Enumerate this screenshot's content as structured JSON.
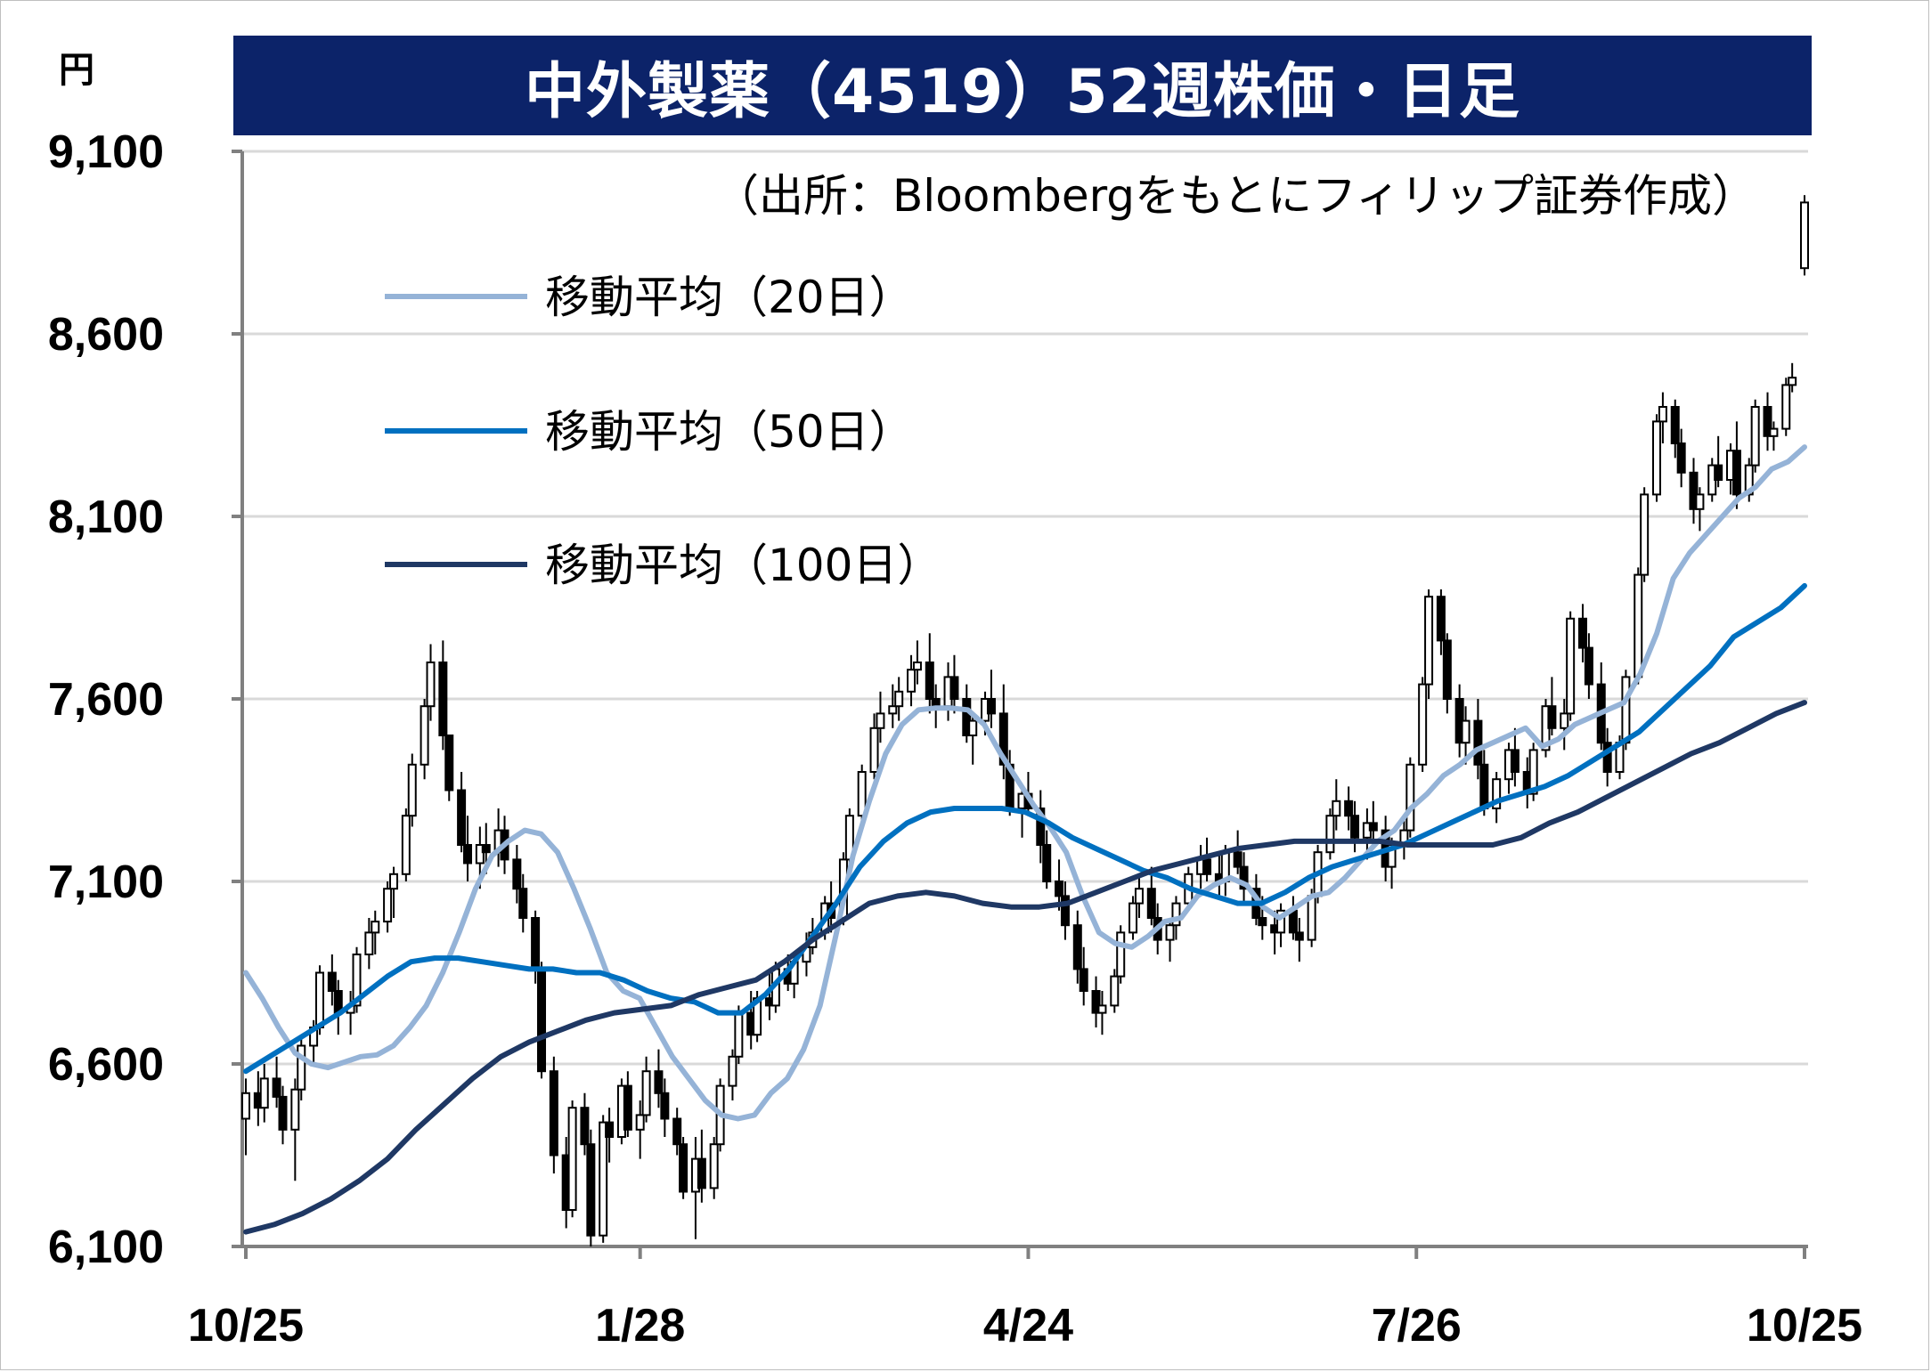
{
  "title": "中外製薬（4519）52週株価・日足",
  "unit": "円",
  "source": "（出所：Bloombergをもとにフィリップ証券作成）",
  "colors": {
    "title_bg": "#0c2369",
    "ma20": "#95b3d7",
    "ma50": "#0070c0",
    "ma100": "#1f3864",
    "candle": "#000000",
    "grid": "#d9d9d9"
  },
  "chart_data": {
    "type": "candlestick",
    "title": "中外製薬（4519）52週株価・日足",
    "ylabel": "円",
    "ylim": [
      6100,
      9100
    ],
    "y_ticks": [
      "9,100",
      "8,600",
      "8,100",
      "7,600",
      "7,100",
      "6,600",
      "6,100"
    ],
    "y_tick_values": [
      9100,
      8600,
      8100,
      7600,
      7100,
      6600,
      6100
    ],
    "x_ticks": [
      "10/25",
      "1/28",
      "4/24",
      "7/26",
      "10/25"
    ],
    "x_tick_index": [
      0,
      64,
      127,
      190,
      253
    ],
    "grid": true,
    "legend_position": "upper-left",
    "series": [
      {
        "name": "移動平均（20日）",
        "values": [
          6850,
          6780,
          6700,
          6630,
          6600,
          6590,
          6605,
          6620,
          6625,
          6650,
          6700,
          6760,
          6850,
          6960,
          7080,
          7170,
          7210,
          7240,
          7230,
          7180,
          7080,
          6970,
          6850,
          6800,
          6780,
          6700,
          6620,
          6560,
          6500,
          6460,
          6450,
          6460,
          6520,
          6560,
          6640,
          6760,
          6960,
          7170,
          7320,
          7450,
          7530,
          7570,
          7575,
          7575,
          7570,
          7530,
          7450,
          7380,
          7310,
          7250,
          7180,
          7060,
          6960,
          6930,
          6920,
          6950,
          6990,
          7000,
          7060,
          7090,
          7110,
          7090,
          7030,
          7000,
          7030,
          7060,
          7070,
          7110,
          7160,
          7210,
          7240,
          7300,
          7340,
          7390,
          7420,
          7460,
          7480,
          7500,
          7520,
          7470,
          7490,
          7530,
          7550,
          7570,
          7590,
          7670,
          7780,
          7930,
          8000,
          8050,
          8100,
          8150,
          8180,
          8230,
          8250,
          8290
        ]
      },
      {
        "name": "移動平均（50日）",
        "values": [
          6580,
          6620,
          6660,
          6700,
          6740,
          6790,
          6840,
          6880,
          6890,
          6890,
          6880,
          6870,
          6860,
          6860,
          6850,
          6850,
          6830,
          6800,
          6780,
          6770,
          6740,
          6740,
          6790,
          6860,
          6950,
          7040,
          7140,
          7210,
          7260,
          7290,
          7300,
          7300,
          7300,
          7290,
          7260,
          7220,
          7190,
          7160,
          7130,
          7110,
          7080,
          7060,
          7040,
          7040,
          7070,
          7110,
          7140,
          7160,
          7180,
          7200,
          7230,
          7260,
          7290,
          7320,
          7340,
          7360,
          7390,
          7430,
          7470,
          7510,
          7570,
          7630,
          7690,
          7770,
          7810,
          7850,
          7910
        ]
      },
      {
        "name": "移動平均（100日）",
        "values": [
          6140,
          6160,
          6190,
          6230,
          6280,
          6340,
          6420,
          6490,
          6560,
          6620,
          6660,
          6690,
          6720,
          6740,
          6750,
          6760,
          6790,
          6810,
          6830,
          6880,
          6940,
          6990,
          7040,
          7060,
          7070,
          7060,
          7040,
          7030,
          7030,
          7040,
          7070,
          7100,
          7130,
          7150,
          7170,
          7190,
          7200,
          7210,
          7210,
          7210,
          7210,
          7200,
          7200,
          7200,
          7200,
          7220,
          7260,
          7290,
          7330,
          7370,
          7410,
          7450,
          7480,
          7520,
          7560,
          7590
        ]
      }
    ],
    "candles": [
      [
        6450,
        6560,
        6350,
        6520
      ],
      [
        6520,
        6580,
        6430,
        6480
      ],
      [
        6480,
        6600,
        6440,
        6560
      ],
      [
        6560,
        6620,
        6480,
        6510
      ],
      [
        6510,
        6540,
        6380,
        6420
      ],
      [
        6420,
        6560,
        6280,
        6530
      ],
      [
        6530,
        6680,
        6500,
        6650
      ],
      [
        6650,
        6720,
        6600,
        6700
      ],
      [
        6700,
        6870,
        6680,
        6850
      ],
      [
        6850,
        6900,
        6760,
        6800
      ],
      [
        6800,
        6830,
        6680,
        6740
      ],
      [
        6740,
        6800,
        6680,
        6760
      ],
      [
        6760,
        6920,
        6740,
        6900
      ],
      [
        6900,
        7000,
        6860,
        6960
      ],
      [
        6960,
        7020,
        6900,
        6990
      ],
      [
        6990,
        7100,
        6960,
        7080
      ],
      [
        7080,
        7140,
        7000,
        7120
      ],
      [
        7120,
        7300,
        7100,
        7280
      ],
      [
        7280,
        7450,
        7250,
        7420
      ],
      [
        7420,
        7600,
        7380,
        7580
      ],
      [
        7580,
        7750,
        7540,
        7700
      ],
      [
        7700,
        7760,
        7460,
        7500
      ],
      [
        7500,
        7500,
        7320,
        7350
      ],
      [
        7350,
        7400,
        7180,
        7200
      ],
      [
        7200,
        7280,
        7100,
        7150
      ],
      [
        7150,
        7250,
        7080,
        7200
      ],
      [
        7200,
        7260,
        7120,
        7180
      ],
      [
        7180,
        7300,
        7140,
        7240
      ],
      [
        7240,
        7280,
        7120,
        7160
      ],
      [
        7160,
        7200,
        7040,
        7080
      ],
      [
        7080,
        7120,
        6960,
        7000
      ],
      [
        7000,
        7020,
        6820,
        6860
      ],
      [
        6860,
        6880,
        6560,
        6580
      ],
      [
        6580,
        6620,
        6300,
        6350
      ],
      [
        6350,
        6400,
        6150,
        6200
      ],
      [
        6200,
        6500,
        6180,
        6480
      ],
      [
        6480,
        6520,
        6350,
        6380
      ],
      [
        6380,
        6420,
        6100,
        6130
      ],
      [
        6130,
        6460,
        6110,
        6440
      ],
      [
        6440,
        6480,
        6330,
        6400
      ],
      [
        6400,
        6560,
        6380,
        6540
      ],
      [
        6540,
        6580,
        6400,
        6420
      ],
      [
        6420,
        6500,
        6340,
        6460
      ],
      [
        6460,
        6620,
        6440,
        6580
      ],
      [
        6580,
        6640,
        6480,
        6520
      ],
      [
        6520,
        6560,
        6400,
        6450
      ],
      [
        6450,
        6480,
        6350,
        6380
      ],
      [
        6380,
        6400,
        6230,
        6250
      ],
      [
        6250,
        6400,
        6120,
        6340
      ],
      [
        6340,
        6420,
        6220,
        6260
      ],
      [
        6260,
        6400,
        6230,
        6380
      ],
      [
        6380,
        6560,
        6360,
        6540
      ],
      [
        6540,
        6640,
        6500,
        6620
      ],
      [
        6620,
        6760,
        6600,
        6740
      ],
      [
        6740,
        6800,
        6640,
        6680
      ],
      [
        6680,
        6800,
        6660,
        6780
      ],
      [
        6780,
        6860,
        6720,
        6760
      ],
      [
        6760,
        6880,
        6740,
        6860
      ],
      [
        6860,
        6900,
        6800,
        6820
      ],
      [
        6820,
        6900,
        6780,
        6880
      ],
      [
        6880,
        6960,
        6840,
        6920
      ],
      [
        6920,
        7000,
        6900,
        6960
      ],
      [
        6960,
        7060,
        6940,
        7040
      ],
      [
        7040,
        7100,
        6960,
        7000
      ],
      [
        7000,
        7180,
        6980,
        7160
      ],
      [
        7160,
        7300,
        7140,
        7280
      ],
      [
        7280,
        7420,
        7260,
        7400
      ],
      [
        7400,
        7560,
        7380,
        7520
      ],
      [
        7520,
        7620,
        7480,
        7560
      ],
      [
        7560,
        7640,
        7520,
        7580
      ],
      [
        7580,
        7660,
        7540,
        7620
      ],
      [
        7620,
        7720,
        7580,
        7680
      ],
      [
        7680,
        7760,
        7640,
        7700
      ],
      [
        7700,
        7780,
        7560,
        7600
      ],
      [
        7600,
        7640,
        7520,
        7580
      ],
      [
        7580,
        7700,
        7540,
        7660
      ],
      [
        7660,
        7720,
        7560,
        7600
      ],
      [
        7600,
        7640,
        7480,
        7500
      ],
      [
        7500,
        7560,
        7420,
        7540
      ],
      [
        7540,
        7620,
        7500,
        7600
      ],
      [
        7600,
        7680,
        7520,
        7560
      ],
      [
        7560,
        7640,
        7380,
        7420
      ],
      [
        7420,
        7460,
        7280,
        7300
      ],
      [
        7300,
        7360,
        7220,
        7340
      ],
      [
        7340,
        7400,
        7280,
        7300
      ],
      [
        7300,
        7350,
        7150,
        7200
      ],
      [
        7200,
        7240,
        7080,
        7100
      ],
      [
        7100,
        7160,
        7020,
        7060
      ],
      [
        7060,
        7100,
        6940,
        6980
      ],
      [
        6980,
        7020,
        6820,
        6860
      ],
      [
        6860,
        6920,
        6760,
        6800
      ],
      [
        6800,
        6840,
        6700,
        6740
      ],
      [
        6740,
        6800,
        6680,
        6760
      ],
      [
        6760,
        6860,
        6740,
        6840
      ],
      [
        6840,
        6980,
        6820,
        6960
      ],
      [
        6960,
        7060,
        6940,
        7040
      ],
      [
        7040,
        7120,
        7000,
        7080
      ],
      [
        7080,
        7140,
        6980,
        7000
      ],
      [
        7000,
        7040,
        6900,
        6940
      ],
      [
        6940,
        7000,
        6880,
        6980
      ],
      [
        6980,
        7060,
        6940,
        7040
      ],
      [
        7040,
        7140,
        7020,
        7120
      ],
      [
        7120,
        7200,
        7080,
        7160
      ],
      [
        7160,
        7220,
        7100,
        7120
      ],
      [
        7120,
        7180,
        7060,
        7100
      ],
      [
        7100,
        7200,
        7060,
        7180
      ],
      [
        7180,
        7240,
        7120,
        7140
      ],
      [
        7140,
        7180,
        7040,
        7080
      ],
      [
        7080,
        7120,
        6980,
        7000
      ],
      [
        7000,
        7060,
        6940,
        6980
      ],
      [
        6980,
        7020,
        6900,
        6960
      ],
      [
        6960,
        7040,
        6920,
        7020
      ],
      [
        7020,
        7060,
        6940,
        6960
      ],
      [
        6960,
        7000,
        6880,
        6940
      ],
      [
        6940,
        7080,
        6920,
        7060
      ],
      [
        7060,
        7200,
        7040,
        7180
      ],
      [
        7180,
        7300,
        7160,
        7280
      ],
      [
        7280,
        7380,
        7240,
        7320
      ],
      [
        7320,
        7360,
        7240,
        7280
      ],
      [
        7280,
        7320,
        7180,
        7220
      ],
      [
        7220,
        7300,
        7160,
        7260
      ],
      [
        7260,
        7320,
        7200,
        7240
      ],
      [
        7240,
        7280,
        7100,
        7140
      ],
      [
        7140,
        7220,
        7080,
        7200
      ],
      [
        7200,
        7280,
        7160,
        7240
      ],
      [
        7240,
        7440,
        7220,
        7420
      ],
      [
        7420,
        7660,
        7400,
        7640
      ],
      [
        7640,
        7900,
        7600,
        7880
      ],
      [
        7880,
        7900,
        7720,
        7760
      ],
      [
        7760,
        7780,
        7560,
        7600
      ],
      [
        7600,
        7640,
        7440,
        7480
      ],
      [
        7480,
        7580,
        7420,
        7540
      ],
      [
        7540,
        7600,
        7380,
        7420
      ],
      [
        7420,
        7460,
        7280,
        7300
      ],
      [
        7300,
        7400,
        7260,
        7380
      ],
      [
        7380,
        7480,
        7340,
        7460
      ],
      [
        7460,
        7520,
        7360,
        7400
      ],
      [
        7400,
        7440,
        7300,
        7340
      ],
      [
        7340,
        7480,
        7320,
        7460
      ],
      [
        7460,
        7600,
        7440,
        7580
      ],
      [
        7580,
        7660,
        7500,
        7520
      ],
      [
        7520,
        7600,
        7460,
        7560
      ],
      [
        7560,
        7840,
        7540,
        7820
      ],
      [
        7820,
        7860,
        7700,
        7740
      ],
      [
        7740,
        7780,
        7600,
        7640
      ],
      [
        7640,
        7700,
        7460,
        7480
      ],
      [
        7480,
        7520,
        7360,
        7400
      ],
      [
        7400,
        7500,
        7380,
        7480
      ],
      [
        7480,
        7680,
        7460,
        7660
      ],
      [
        7660,
        7960,
        7640,
        7940
      ],
      [
        7940,
        8180,
        7920,
        8160
      ],
      [
        8160,
        8380,
        8140,
        8360
      ],
      [
        8360,
        8440,
        8300,
        8400
      ],
      [
        8400,
        8420,
        8260,
        8300
      ],
      [
        8300,
        8340,
        8180,
        8220
      ],
      [
        8220,
        8260,
        8080,
        8120
      ],
      [
        8120,
        8180,
        8060,
        8160
      ],
      [
        8160,
        8260,
        8140,
        8240
      ],
      [
        8240,
        8320,
        8180,
        8200
      ],
      [
        8200,
        8300,
        8160,
        8280
      ],
      [
        8280,
        8360,
        8120,
        8160
      ],
      [
        8160,
        8260,
        8140,
        8240
      ],
      [
        8240,
        8420,
        8220,
        8400
      ],
      [
        8400,
        8440,
        8280,
        8320
      ],
      [
        8320,
        8360,
        8280,
        8340
      ],
      [
        8340,
        8480,
        8320,
        8460
      ],
      [
        8460,
        8520,
        8440,
        8480
      ],
      [
        8780,
        8980,
        8760,
        8960
      ]
    ]
  },
  "legend": [
    {
      "label": "移動平均（20日）",
      "color": "#95b3d7"
    },
    {
      "label": "移動平均（50日）",
      "color": "#0070c0"
    },
    {
      "label": "移動平均（100日）",
      "color": "#1f3864"
    }
  ]
}
